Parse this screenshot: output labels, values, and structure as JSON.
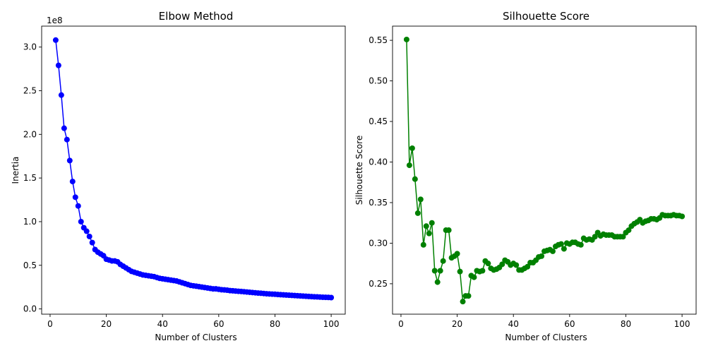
{
  "chart_data": [
    {
      "type": "line",
      "title": "Elbow Method",
      "xlabel": "Number of Clusters",
      "ylabel": "Inertia",
      "y_offset_label": "1e8",
      "xlim": [
        -3,
        105
      ],
      "ylim": [
        -6000000.0,
        324000000.0
      ],
      "xticks": [
        0,
        20,
        40,
        60,
        80,
        100
      ],
      "yticks": [
        0,
        50000000.0,
        100000000.0,
        150000000.0,
        200000000.0,
        250000000.0,
        300000000.0
      ],
      "ytick_labels": [
        "0.0",
        "0.5",
        "1.0",
        "1.5",
        "2.0",
        "2.5",
        "3.0"
      ],
      "color": "#0000ff",
      "marker": "circle",
      "series": [
        {
          "x": [
            2,
            3,
            4,
            5,
            6,
            7,
            8,
            9,
            10,
            11,
            12,
            13,
            14,
            15,
            16,
            17,
            18,
            19,
            20,
            21,
            22,
            23,
            24,
            25,
            26,
            27,
            28,
            29,
            30,
            31,
            32,
            33,
            34,
            35,
            36,
            37,
            38,
            39,
            40,
            41,
            42,
            43,
            44,
            45,
            46,
            47,
            48,
            49,
            50,
            51,
            52,
            53,
            54,
            55,
            56,
            57,
            58,
            59,
            60,
            61,
            62,
            63,
            64,
            65,
            66,
            67,
            68,
            69,
            70,
            71,
            72,
            73,
            74,
            75,
            76,
            77,
            78,
            79,
            80,
            81,
            82,
            83,
            84,
            85,
            86,
            87,
            88,
            89,
            90,
            91,
            92,
            93,
            94,
            95,
            96,
            97,
            98,
            99,
            100
          ],
          "y": [
            308000000,
            279000000,
            245000000,
            207000000,
            194000000,
            170000000,
            146000000,
            128000000,
            118000000,
            100000000,
            93000000,
            89000000,
            83000000,
            76000000,
            68000000,
            65000000,
            63000000,
            61000000,
            57000000,
            56000000,
            55000000,
            55000000,
            54000000,
            51000000,
            49000000,
            47000000,
            45000000,
            43000000,
            42000000,
            41000000,
            40000000,
            39000000,
            38500000,
            38000000,
            37500000,
            37000000,
            36000000,
            35000000,
            34500000,
            34000000,
            33500000,
            33000000,
            32500000,
            32000000,
            31000000,
            30000000,
            29000000,
            28000000,
            27000000,
            26500000,
            26000000,
            25500000,
            25000000,
            24500000,
            24000000,
            23500000,
            23000000,
            23000000,
            22500000,
            22000000,
            21800000,
            21500000,
            21000000,
            20800000,
            20500000,
            20200000,
            20000000,
            19700000,
            19400000,
            19100000,
            18800000,
            18500000,
            18200000,
            18000000,
            17700000,
            17400000,
            17200000,
            17000000,
            16800000,
            16500000,
            16300000,
            16100000,
            15900000,
            15700000,
            15500000,
            15300000,
            15100000,
            14900000,
            14700000,
            14500000,
            14300000,
            14100000,
            13900000,
            13800000,
            13600000,
            13400000,
            13300000,
            13200000,
            13000000
          ]
        }
      ]
    },
    {
      "type": "line",
      "title": "Silhouette Score",
      "xlabel": "Number of Clusters",
      "ylabel": "Silhouette Score",
      "xlim": [
        -3,
        105
      ],
      "ylim": [
        0.2125,
        0.5675
      ],
      "xticks": [
        0,
        20,
        40,
        60,
        80,
        100
      ],
      "yticks": [
        0.25,
        0.3,
        0.35,
        0.4,
        0.45,
        0.5,
        0.55
      ],
      "ytick_labels": [
        "0.25",
        "0.30",
        "0.35",
        "0.40",
        "0.45",
        "0.50",
        "0.55"
      ],
      "color": "#008000",
      "marker": "circle",
      "series": [
        {
          "x": [
            2,
            3,
            4,
            5,
            6,
            7,
            8,
            9,
            10,
            11,
            12,
            13,
            14,
            15,
            16,
            17,
            18,
            19,
            20,
            21,
            22,
            23,
            24,
            25,
            26,
            27,
            28,
            29,
            30,
            31,
            32,
            33,
            34,
            35,
            36,
            37,
            38,
            39,
            40,
            41,
            42,
            43,
            44,
            45,
            46,
            47,
            48,
            49,
            50,
            51,
            52,
            53,
            54,
            55,
            56,
            57,
            58,
            59,
            60,
            61,
            62,
            63,
            64,
            65,
            66,
            67,
            68,
            69,
            70,
            71,
            72,
            73,
            74,
            75,
            76,
            77,
            78,
            79,
            80,
            81,
            82,
            83,
            84,
            85,
            86,
            87,
            88,
            89,
            90,
            91,
            92,
            93,
            94,
            95,
            96,
            97,
            98,
            99,
            100
          ],
          "y": [
            0.551,
            0.396,
            0.417,
            0.379,
            0.337,
            0.354,
            0.298,
            0.321,
            0.312,
            0.325,
            0.266,
            0.252,
            0.266,
            0.278,
            0.316,
            0.316,
            0.282,
            0.284,
            0.287,
            0.265,
            0.228,
            0.235,
            0.235,
            0.26,
            0.258,
            0.266,
            0.265,
            0.266,
            0.278,
            0.275,
            0.269,
            0.267,
            0.268,
            0.27,
            0.274,
            0.279,
            0.277,
            0.273,
            0.275,
            0.273,
            0.267,
            0.267,
            0.269,
            0.271,
            0.276,
            0.276,
            0.279,
            0.283,
            0.284,
            0.29,
            0.291,
            0.292,
            0.29,
            0.296,
            0.298,
            0.299,
            0.293,
            0.3,
            0.299,
            0.301,
            0.301,
            0.299,
            0.298,
            0.306,
            0.304,
            0.305,
            0.304,
            0.308,
            0.313,
            0.309,
            0.311,
            0.31,
            0.31,
            0.31,
            0.308,
            0.308,
            0.308,
            0.308,
            0.313,
            0.316,
            0.321,
            0.324,
            0.326,
            0.329,
            0.325,
            0.327,
            0.328,
            0.33,
            0.33,
            0.329,
            0.331,
            0.335,
            0.334,
            0.334,
            0.334,
            0.335,
            0.334,
            0.334,
            0.333
          ]
        }
      ]
    }
  ]
}
